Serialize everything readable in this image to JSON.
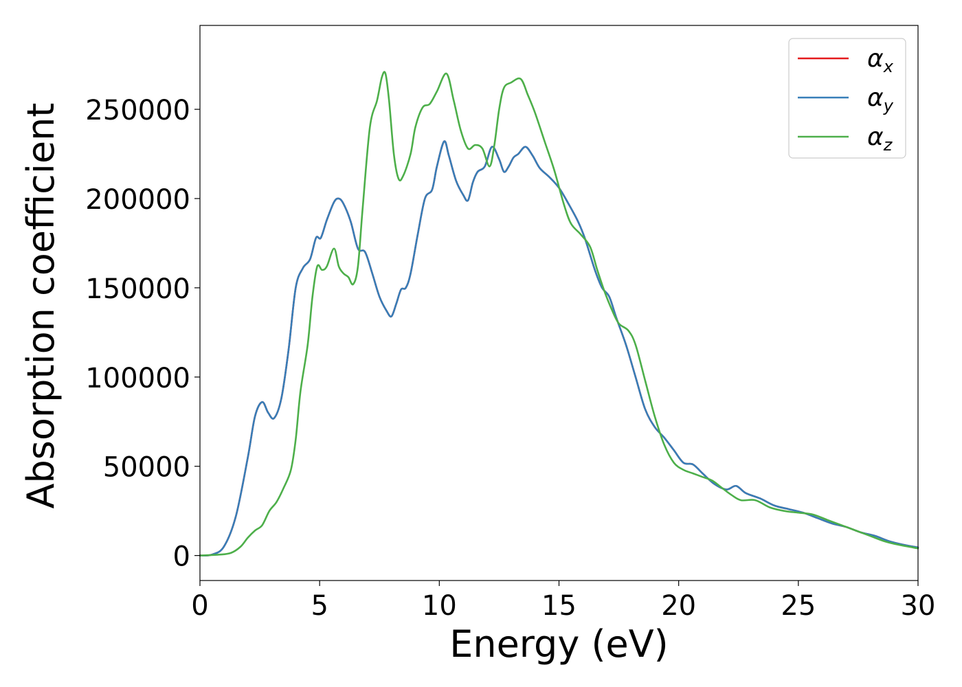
{
  "chart_data": {
    "type": "line",
    "title": "",
    "xlabel": "Energy (eV)",
    "ylabel": "Absorption coefficient",
    "xlim": [
      0,
      30
    ],
    "ylim": [
      -14000,
      297000
    ],
    "xticks": [
      0,
      5,
      10,
      15,
      20,
      25,
      30
    ],
    "yticks": [
      0,
      50000,
      100000,
      150000,
      200000,
      250000
    ],
    "xtick_labels": [
      "0",
      "5",
      "10",
      "15",
      "20",
      "25",
      "30"
    ],
    "ytick_labels": [
      "0",
      "50000",
      "100000",
      "150000",
      "200000",
      "250000"
    ],
    "grid": false,
    "legend_position": "top-right",
    "series": [
      {
        "name": "alpha_x",
        "symbol": "α",
        "subscript": "x",
        "color": "#e41a1c",
        "points": [
          [
            0,
            0
          ],
          [
            0.5,
            500
          ],
          [
            1.0,
            5000
          ],
          [
            1.5,
            22000
          ],
          [
            2.0,
            55000
          ],
          [
            2.3,
            78000
          ],
          [
            2.6,
            86000
          ],
          [
            2.85,
            80000
          ],
          [
            3.1,
            77000
          ],
          [
            3.4,
            88000
          ],
          [
            3.7,
            115000
          ],
          [
            4.0,
            150000
          ],
          [
            4.3,
            161000
          ],
          [
            4.6,
            166000
          ],
          [
            4.85,
            178000
          ],
          [
            5.05,
            178000
          ],
          [
            5.3,
            188000
          ],
          [
            5.6,
            198000
          ],
          [
            5.8,
            200000
          ],
          [
            6.0,
            197000
          ],
          [
            6.3,
            187000
          ],
          [
            6.6,
            172000
          ],
          [
            6.9,
            170000
          ],
          [
            7.2,
            158000
          ],
          [
            7.5,
            145000
          ],
          [
            7.8,
            137000
          ],
          [
            8.0,
            134000
          ],
          [
            8.2,
            141000
          ],
          [
            8.4,
            149000
          ],
          [
            8.6,
            150000
          ],
          [
            8.8,
            158000
          ],
          [
            9.1,
            180000
          ],
          [
            9.4,
            200000
          ],
          [
            9.7,
            205000
          ],
          [
            9.9,
            218000
          ],
          [
            10.2,
            232000
          ],
          [
            10.4,
            224000
          ],
          [
            10.7,
            210000
          ],
          [
            11.0,
            202000
          ],
          [
            11.2,
            199000
          ],
          [
            11.4,
            209000
          ],
          [
            11.6,
            215000
          ],
          [
            11.9,
            218000
          ],
          [
            12.2,
            229000
          ],
          [
            12.5,
            222000
          ],
          [
            12.7,
            215000
          ],
          [
            12.9,
            218000
          ],
          [
            13.1,
            223000
          ],
          [
            13.3,
            225000
          ],
          [
            13.6,
            229000
          ],
          [
            13.9,
            224000
          ],
          [
            14.2,
            217000
          ],
          [
            14.6,
            212000
          ],
          [
            15.0,
            206000
          ],
          [
            15.4,
            197000
          ],
          [
            15.8,
            187000
          ],
          [
            16.1,
            177000
          ],
          [
            16.5,
            160000
          ],
          [
            16.8,
            150000
          ],
          [
            17.1,
            145000
          ],
          [
            17.4,
            133000
          ],
          [
            17.8,
            118000
          ],
          [
            18.2,
            100000
          ],
          [
            18.6,
            82000
          ],
          [
            19.0,
            72000
          ],
          [
            19.4,
            66000
          ],
          [
            19.8,
            59000
          ],
          [
            20.2,
            52000
          ],
          [
            20.6,
            51000
          ],
          [
            21.0,
            46000
          ],
          [
            21.5,
            40000
          ],
          [
            22.0,
            37000
          ],
          [
            22.4,
            39000
          ],
          [
            22.8,
            35000
          ],
          [
            23.4,
            32000
          ],
          [
            24.0,
            28000
          ],
          [
            24.6,
            26000
          ],
          [
            25.2,
            24000
          ],
          [
            25.8,
            21000
          ],
          [
            26.4,
            18000
          ],
          [
            27.0,
            16000
          ],
          [
            27.6,
            13000
          ],
          [
            28.2,
            11000
          ],
          [
            28.8,
            8000
          ],
          [
            29.4,
            6000
          ],
          [
            30.0,
            4500
          ]
        ]
      },
      {
        "name": "alpha_y",
        "symbol": "α",
        "subscript": "y",
        "color": "#377eb8",
        "points": [
          [
            0,
            0
          ],
          [
            0.5,
            500
          ],
          [
            1.0,
            5000
          ],
          [
            1.5,
            22000
          ],
          [
            2.0,
            55000
          ],
          [
            2.3,
            78000
          ],
          [
            2.6,
            86000
          ],
          [
            2.85,
            80000
          ],
          [
            3.1,
            77000
          ],
          [
            3.4,
            88000
          ],
          [
            3.7,
            115000
          ],
          [
            4.0,
            150000
          ],
          [
            4.3,
            161000
          ],
          [
            4.6,
            166000
          ],
          [
            4.85,
            178000
          ],
          [
            5.05,
            178000
          ],
          [
            5.3,
            188000
          ],
          [
            5.6,
            198000
          ],
          [
            5.8,
            200000
          ],
          [
            6.0,
            197000
          ],
          [
            6.3,
            187000
          ],
          [
            6.6,
            172000
          ],
          [
            6.9,
            170000
          ],
          [
            7.2,
            158000
          ],
          [
            7.5,
            145000
          ],
          [
            7.8,
            137000
          ],
          [
            8.0,
            134000
          ],
          [
            8.2,
            141000
          ],
          [
            8.4,
            149000
          ],
          [
            8.6,
            150000
          ],
          [
            8.8,
            158000
          ],
          [
            9.1,
            180000
          ],
          [
            9.4,
            200000
          ],
          [
            9.7,
            205000
          ],
          [
            9.9,
            218000
          ],
          [
            10.2,
            232000
          ],
          [
            10.4,
            224000
          ],
          [
            10.7,
            210000
          ],
          [
            11.0,
            202000
          ],
          [
            11.2,
            199000
          ],
          [
            11.4,
            209000
          ],
          [
            11.6,
            215000
          ],
          [
            11.9,
            218000
          ],
          [
            12.2,
            229000
          ],
          [
            12.5,
            222000
          ],
          [
            12.7,
            215000
          ],
          [
            12.9,
            218000
          ],
          [
            13.1,
            223000
          ],
          [
            13.3,
            225000
          ],
          [
            13.6,
            229000
          ],
          [
            13.9,
            224000
          ],
          [
            14.2,
            217000
          ],
          [
            14.6,
            212000
          ],
          [
            15.0,
            206000
          ],
          [
            15.4,
            197000
          ],
          [
            15.8,
            187000
          ],
          [
            16.1,
            177000
          ],
          [
            16.5,
            160000
          ],
          [
            16.8,
            150000
          ],
          [
            17.1,
            145000
          ],
          [
            17.4,
            133000
          ],
          [
            17.8,
            118000
          ],
          [
            18.2,
            100000
          ],
          [
            18.6,
            82000
          ],
          [
            19.0,
            72000
          ],
          [
            19.4,
            66000
          ],
          [
            19.8,
            59000
          ],
          [
            20.2,
            52000
          ],
          [
            20.6,
            51000
          ],
          [
            21.0,
            46000
          ],
          [
            21.5,
            40000
          ],
          [
            22.0,
            37000
          ],
          [
            22.4,
            39000
          ],
          [
            22.8,
            35000
          ],
          [
            23.4,
            32000
          ],
          [
            24.0,
            28000
          ],
          [
            24.6,
            26000
          ],
          [
            25.2,
            24000
          ],
          [
            25.8,
            21000
          ],
          [
            26.4,
            18000
          ],
          [
            27.0,
            16000
          ],
          [
            27.6,
            13000
          ],
          [
            28.2,
            11000
          ],
          [
            28.8,
            8000
          ],
          [
            29.4,
            6000
          ],
          [
            30.0,
            4500
          ]
        ]
      },
      {
        "name": "alpha_z",
        "symbol": "α",
        "subscript": "z",
        "color": "#4daf4a",
        "points": [
          [
            0,
            0
          ],
          [
            0.8,
            500
          ],
          [
            1.3,
            1500
          ],
          [
            1.7,
            5000
          ],
          [
            2.0,
            10000
          ],
          [
            2.3,
            14000
          ],
          [
            2.6,
            17000
          ],
          [
            2.9,
            25000
          ],
          [
            3.2,
            30000
          ],
          [
            3.5,
            38000
          ],
          [
            3.8,
            48000
          ],
          [
            4.0,
            65000
          ],
          [
            4.2,
            92000
          ],
          [
            4.5,
            118000
          ],
          [
            4.7,
            145000
          ],
          [
            4.9,
            162000
          ],
          [
            5.1,
            160000
          ],
          [
            5.3,
            162000
          ],
          [
            5.6,
            172000
          ],
          [
            5.8,
            162000
          ],
          [
            6.0,
            158000
          ],
          [
            6.2,
            156000
          ],
          [
            6.4,
            152000
          ],
          [
            6.6,
            162000
          ],
          [
            6.8,
            195000
          ],
          [
            7.1,
            240000
          ],
          [
            7.4,
            255000
          ],
          [
            7.6,
            268000
          ],
          [
            7.75,
            270000
          ],
          [
            7.9,
            255000
          ],
          [
            8.1,
            225000
          ],
          [
            8.3,
            211000
          ],
          [
            8.5,
            213000
          ],
          [
            8.8,
            225000
          ],
          [
            9.0,
            240000
          ],
          [
            9.3,
            251000
          ],
          [
            9.6,
            253000
          ],
          [
            9.9,
            260000
          ],
          [
            10.3,
            270000
          ],
          [
            10.6,
            255000
          ],
          [
            10.9,
            238000
          ],
          [
            11.2,
            228000
          ],
          [
            11.5,
            230000
          ],
          [
            11.8,
            228000
          ],
          [
            12.1,
            218000
          ],
          [
            12.3,
            230000
          ],
          [
            12.5,
            250000
          ],
          [
            12.7,
            262000
          ],
          [
            13.0,
            265000
          ],
          [
            13.4,
            267000
          ],
          [
            13.7,
            258000
          ],
          [
            14.0,
            248000
          ],
          [
            14.4,
            232000
          ],
          [
            14.8,
            216000
          ],
          [
            15.2,
            197000
          ],
          [
            15.5,
            186000
          ],
          [
            15.9,
            180000
          ],
          [
            16.3,
            173000
          ],
          [
            16.6,
            160000
          ],
          [
            16.9,
            148000
          ],
          [
            17.2,
            138000
          ],
          [
            17.5,
            130000
          ],
          [
            17.9,
            126000
          ],
          [
            18.2,
            118000
          ],
          [
            18.6,
            98000
          ],
          [
            19.0,
            78000
          ],
          [
            19.4,
            62000
          ],
          [
            19.8,
            52000
          ],
          [
            20.2,
            48000
          ],
          [
            20.6,
            46000
          ],
          [
            21.0,
            44000
          ],
          [
            21.4,
            42000
          ],
          [
            21.8,
            38000
          ],
          [
            22.2,
            34000
          ],
          [
            22.6,
            31000
          ],
          [
            23.2,
            31000
          ],
          [
            23.8,
            27000
          ],
          [
            24.4,
            25000
          ],
          [
            25.0,
            24000
          ],
          [
            25.6,
            23000
          ],
          [
            26.2,
            20000
          ],
          [
            26.8,
            17000
          ],
          [
            27.4,
            14000
          ],
          [
            28.0,
            11000
          ],
          [
            28.6,
            8000
          ],
          [
            29.2,
            6000
          ],
          [
            30.0,
            4000
          ]
        ]
      }
    ]
  }
}
